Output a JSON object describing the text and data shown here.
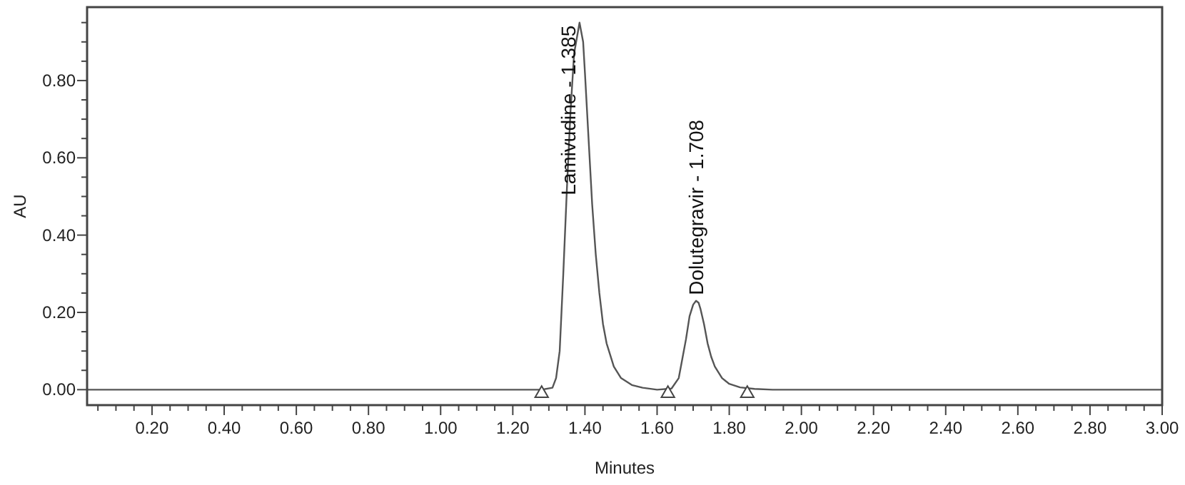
{
  "chart_data": {
    "type": "line",
    "xlabel": "Minutes",
    "ylabel": "AU",
    "xlim": [
      0.02,
      3.0
    ],
    "ylim": [
      -0.04,
      0.99
    ],
    "xticks": [
      {
        "value": 0.05,
        "label": null
      },
      {
        "value": 0.1,
        "label": null
      },
      {
        "value": 0.15,
        "label": null
      },
      {
        "value": 0.2,
        "label": "0.20"
      },
      {
        "value": 0.25,
        "label": null
      },
      {
        "value": 0.3,
        "label": null
      },
      {
        "value": 0.35,
        "label": null
      },
      {
        "value": 0.4,
        "label": "0.40"
      },
      {
        "value": 0.45,
        "label": null
      },
      {
        "value": 0.5,
        "label": null
      },
      {
        "value": 0.55,
        "label": null
      },
      {
        "value": 0.6,
        "label": "0.60"
      },
      {
        "value": 0.65,
        "label": null
      },
      {
        "value": 0.7,
        "label": null
      },
      {
        "value": 0.75,
        "label": null
      },
      {
        "value": 0.8,
        "label": "0.80"
      },
      {
        "value": 0.85,
        "label": null
      },
      {
        "value": 0.9,
        "label": null
      },
      {
        "value": 0.95,
        "label": null
      },
      {
        "value": 1.0,
        "label": "1.00"
      },
      {
        "value": 1.05,
        "label": null
      },
      {
        "value": 1.1,
        "label": null
      },
      {
        "value": 1.15,
        "label": null
      },
      {
        "value": 1.2,
        "label": "1.20"
      },
      {
        "value": 1.25,
        "label": null
      },
      {
        "value": 1.3,
        "label": null
      },
      {
        "value": 1.35,
        "label": null
      },
      {
        "value": 1.4,
        "label": "1.40"
      },
      {
        "value": 1.45,
        "label": null
      },
      {
        "value": 1.5,
        "label": null
      },
      {
        "value": 1.55,
        "label": null
      },
      {
        "value": 1.6,
        "label": "1.60"
      },
      {
        "value": 1.65,
        "label": null
      },
      {
        "value": 1.7,
        "label": null
      },
      {
        "value": 1.75,
        "label": null
      },
      {
        "value": 1.8,
        "label": "1.80"
      },
      {
        "value": 1.85,
        "label": null
      },
      {
        "value": 1.9,
        "label": null
      },
      {
        "value": 1.95,
        "label": null
      },
      {
        "value": 2.0,
        "label": "2.00"
      },
      {
        "value": 2.05,
        "label": null
      },
      {
        "value": 2.1,
        "label": null
      },
      {
        "value": 2.15,
        "label": null
      },
      {
        "value": 2.2,
        "label": "2.20"
      },
      {
        "value": 2.25,
        "label": null
      },
      {
        "value": 2.3,
        "label": null
      },
      {
        "value": 2.35,
        "label": null
      },
      {
        "value": 2.4,
        "label": "2.40"
      },
      {
        "value": 2.45,
        "label": null
      },
      {
        "value": 2.5,
        "label": null
      },
      {
        "value": 2.55,
        "label": null
      },
      {
        "value": 2.6,
        "label": "2.60"
      },
      {
        "value": 2.65,
        "label": null
      },
      {
        "value": 2.7,
        "label": null
      },
      {
        "value": 2.75,
        "label": null
      },
      {
        "value": 2.8,
        "label": "2.80"
      },
      {
        "value": 2.85,
        "label": null
      },
      {
        "value": 2.9,
        "label": null
      },
      {
        "value": 2.95,
        "label": null
      },
      {
        "value": 3.0,
        "label": "3.00"
      }
    ],
    "yticks": [
      {
        "value": 0.0,
        "label": "0.00"
      },
      {
        "value": 0.05,
        "label": null
      },
      {
        "value": 0.1,
        "label": null
      },
      {
        "value": 0.15,
        "label": null
      },
      {
        "value": 0.2,
        "label": "0.20"
      },
      {
        "value": 0.25,
        "label": null
      },
      {
        "value": 0.3,
        "label": null
      },
      {
        "value": 0.35,
        "label": null
      },
      {
        "value": 0.4,
        "label": "0.40"
      },
      {
        "value": 0.45,
        "label": null
      },
      {
        "value": 0.5,
        "label": null
      },
      {
        "value": 0.55,
        "label": null
      },
      {
        "value": 0.6,
        "label": "0.60"
      },
      {
        "value": 0.65,
        "label": null
      },
      {
        "value": 0.7,
        "label": null
      },
      {
        "value": 0.75,
        "label": null
      },
      {
        "value": 0.8,
        "label": "0.80"
      },
      {
        "value": 0.85,
        "label": null
      },
      {
        "value": 0.9,
        "label": null
      },
      {
        "value": 0.95,
        "label": null
      }
    ],
    "series": [
      {
        "color": "#555555",
        "x": [
          0.02,
          1.28,
          1.31,
          1.32,
          1.33,
          1.34,
          1.35,
          1.36,
          1.37,
          1.385,
          1.395,
          1.4,
          1.41,
          1.42,
          1.43,
          1.44,
          1.45,
          1.46,
          1.48,
          1.5,
          1.53,
          1.56,
          1.6,
          1.64,
          1.66,
          1.67,
          1.68,
          1.69,
          1.7,
          1.708,
          1.715,
          1.72,
          1.73,
          1.74,
          1.75,
          1.76,
          1.78,
          1.8,
          1.83,
          1.87,
          1.92,
          3.0
        ],
        "values": [
          0,
          0,
          0.005,
          0.03,
          0.1,
          0.3,
          0.52,
          0.72,
          0.87,
          0.95,
          0.9,
          0.82,
          0.65,
          0.48,
          0.35,
          0.25,
          0.17,
          0.12,
          0.06,
          0.03,
          0.012,
          0.005,
          0,
          0.003,
          0.03,
          0.08,
          0.13,
          0.19,
          0.22,
          0.23,
          0.225,
          0.21,
          0.17,
          0.12,
          0.085,
          0.06,
          0.03,
          0.015,
          0.006,
          0.002,
          0,
          0
        ]
      },
      {
        "type": "scatter",
        "color": "#444444",
        "marker": "triangle",
        "x": [
          1.28,
          1.63,
          1.85
        ],
        "values": [
          -0.01,
          -0.01,
          -0.01
        ]
      }
    ],
    "annotations": [
      {
        "text": "Lamivudine - 1.385",
        "x": 1.385,
        "y": 0.95
      },
      {
        "text": "Dolutegravir - 1.708",
        "x": 1.708,
        "y": 0.23
      }
    ]
  }
}
